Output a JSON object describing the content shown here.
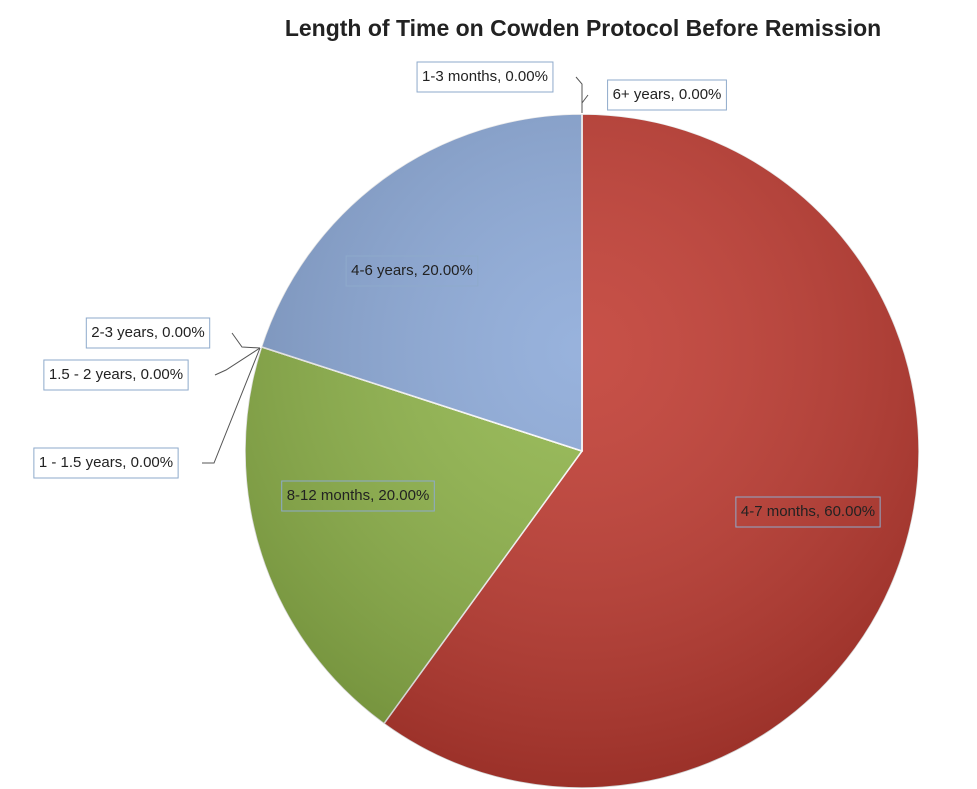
{
  "chart_data": {
    "type": "pie",
    "title": "Length of Time on Cowden Protocol Before Remission",
    "categories": [
      "1-3 months",
      "4-7 months",
      "8-12 months",
      "1 - 1.5 years",
      "1.5 - 2 years",
      "2-3 years",
      "4-6 years",
      "6+ years"
    ],
    "values": [
      0,
      60,
      20,
      0,
      0,
      0,
      20,
      0
    ],
    "value_labels": [
      "1-3 months, 0.00%",
      "4-7 months, 60.00%",
      "8-12 months, 20.00%",
      "1 - 1.5 years, 0.00%",
      "1.5 - 2 years, 0.00%",
      "2-3 years, 0.00%",
      "4-6 years, 20.00%",
      "6+ years, 0.00%"
    ],
    "colors": [
      "#4f81bd",
      "#c0392f",
      "#8fb548",
      "#8064a2",
      "#4bacc6",
      "#f79646",
      "#8aa8d8",
      "#2c4d75"
    ]
  }
}
